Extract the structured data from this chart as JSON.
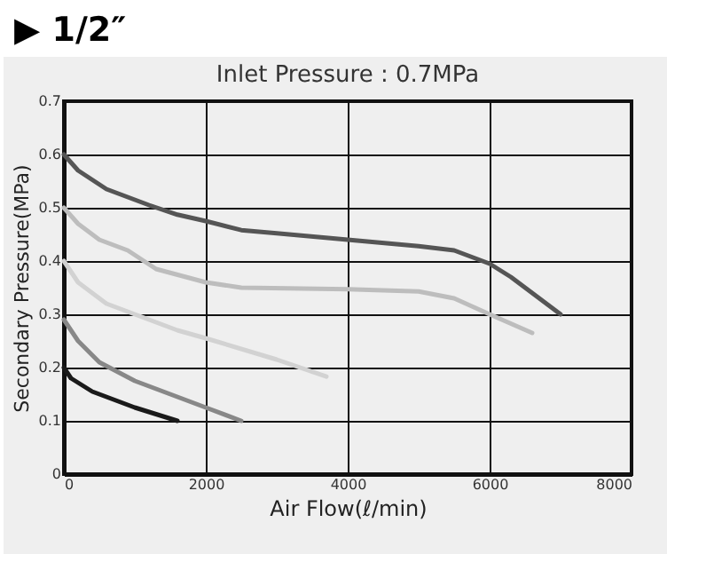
{
  "chart_data": {
    "type": "line",
    "title": "▶ 1/2″",
    "subtitle": "Inlet Pressure : 0.7MPa",
    "xlabel": "Air Flow(ℓ/min)",
    "ylabel": "Secondary Pressure(MPa)",
    "xlim": [
      0,
      8000
    ],
    "xticks": [
      0,
      2000,
      4000,
      6000,
      8000
    ],
    "ylim": [
      0,
      0.7
    ],
    "yticks": [
      0,
      0.1,
      0.2,
      0.3,
      0.4,
      0.5,
      0.6,
      0.7
    ],
    "grid": true,
    "marker": "none",
    "line_style": "solid",
    "series": [
      {
        "color": "#555555",
        "x": [
          0,
          200,
          600,
          1200,
          1600,
          2000,
          2500,
          3000,
          4000,
          5000,
          5500,
          6000,
          6300,
          7000
        ],
        "values": [
          0.6,
          0.57,
          0.535,
          0.505,
          0.487,
          0.475,
          0.458,
          0.452,
          0.44,
          0.428,
          0.42,
          0.395,
          0.37,
          0.3
        ]
      },
      {
        "color": "#bdbdbd",
        "x": [
          0,
          200,
          500,
          900,
          1300,
          2000,
          2500,
          4000,
          5000,
          5500,
          6000,
          6600
        ],
        "values": [
          0.5,
          0.47,
          0.44,
          0.42,
          0.385,
          0.36,
          0.35,
          0.347,
          0.343,
          0.33,
          0.3,
          0.265
        ]
      },
      {
        "color": "#d2d2d2",
        "x": [
          0,
          200,
          600,
          1000,
          1600,
          2000,
          3000,
          3700
        ],
        "values": [
          0.4,
          0.36,
          0.32,
          0.3,
          0.27,
          0.255,
          0.215,
          0.183
        ]
      },
      {
        "color": "#888888",
        "x": [
          0,
          200,
          500,
          1000,
          1500,
          2000,
          2500
        ],
        "values": [
          0.29,
          0.25,
          0.21,
          0.175,
          0.15,
          0.125,
          0.1
        ]
      },
      {
        "color": "#1a1a1a",
        "x": [
          0,
          100,
          400,
          1000,
          1600
        ],
        "values": [
          0.2,
          0.18,
          0.155,
          0.125,
          0.1
        ]
      }
    ]
  }
}
